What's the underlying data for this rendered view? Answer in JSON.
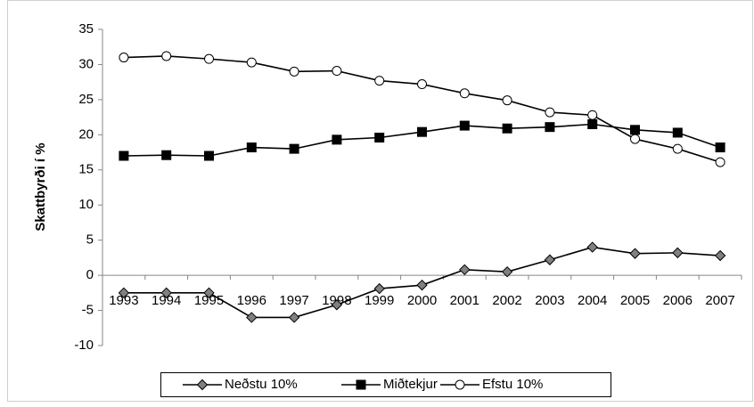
{
  "chart_data": {
    "type": "line",
    "y_label": "Skattbyrði í %",
    "categories": [
      "1993",
      "1994",
      "1995",
      "1996",
      "1997",
      "1998",
      "1999",
      "2000",
      "2001",
      "2002",
      "2003",
      "2004",
      "2005",
      "2006",
      "2007"
    ],
    "series": [
      {
        "name": "Neðstu 10%",
        "color": "#000000",
        "marker": "diamond",
        "marker_fill": "#808080",
        "values": [
          -2.5,
          -2.5,
          -2.5,
          -6.0,
          -6.0,
          -4.2,
          -1.9,
          -1.4,
          0.8,
          0.5,
          2.2,
          4.0,
          3.1,
          3.2,
          2.8
        ]
      },
      {
        "name": "Miðtekjur",
        "color": "#000000",
        "marker": "square",
        "marker_fill": "#000000",
        "values": [
          17.0,
          17.1,
          17.0,
          18.2,
          18.0,
          19.3,
          19.6,
          20.4,
          21.3,
          20.9,
          21.1,
          21.5,
          20.7,
          20.3,
          18.2
        ]
      },
      {
        "name": "Efstu 10%",
        "color": "#000000",
        "marker": "circle",
        "marker_fill": "#ffffff",
        "values": [
          31.0,
          31.2,
          30.8,
          30.3,
          29.0,
          29.1,
          27.7,
          27.2,
          25.9,
          24.9,
          23.2,
          22.8,
          19.4,
          18.0,
          16.1
        ]
      }
    ],
    "ylim": [
      -10,
      35
    ],
    "yticks": [
      -10,
      -5,
      0,
      5,
      10,
      15,
      20,
      25,
      30,
      35
    ],
    "grid": false,
    "legend": "bottom"
  }
}
